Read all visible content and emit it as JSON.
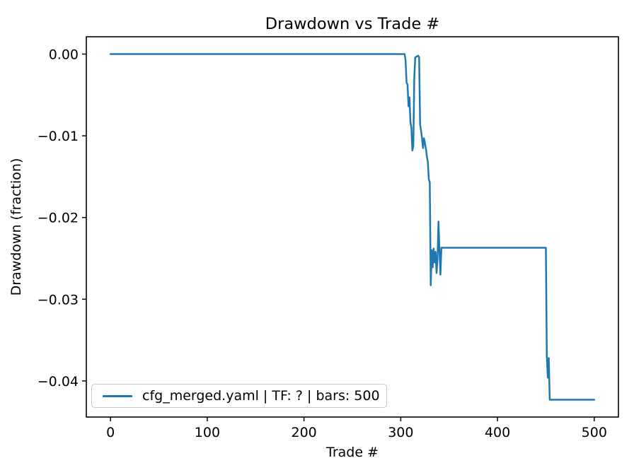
{
  "chart_data": {
    "type": "line",
    "title": "Drawdown vs Trade #",
    "xlabel": "Trade #",
    "ylabel": "Drawdown (fraction)",
    "grid": false,
    "xlim": [
      -25,
      525
    ],
    "ylim": [
      -0.04442,
      0.00212
    ],
    "xticks": {
      "values": [
        0,
        100,
        200,
        300,
        400,
        500
      ],
      "labels": [
        "0",
        "100",
        "200",
        "300",
        "400",
        "500"
      ]
    },
    "yticks": {
      "values": [
        0,
        -0.01,
        -0.02,
        -0.03,
        -0.04
      ],
      "labels": [
        "0.00",
        "−0.01",
        "−0.02",
        "−0.03",
        "−0.04"
      ]
    },
    "legend": {
      "position": "lower left",
      "entries": [
        {
          "label": "cfg_merged.yaml | TF: ? | bars: 500",
          "color": "#1f77b4"
        }
      ]
    },
    "series": [
      {
        "name": "cfg_merged.yaml | TF: ? | bars: 500",
        "color": "#1f77b4",
        "encoding": "polyline-vertices [trade_number, drawdown_fraction]",
        "points": [
          [
            0,
            0.0
          ],
          [
            304,
            0.0
          ],
          [
            305,
            -0.0008
          ],
          [
            306,
            -0.0035
          ],
          [
            307,
            -0.0037
          ],
          [
            308,
            -0.0064
          ],
          [
            309,
            -0.0053
          ],
          [
            310,
            -0.0083
          ],
          [
            311,
            -0.009
          ],
          [
            312,
            -0.0118
          ],
          [
            313,
            -0.0112
          ],
          [
            314,
            -0.0028
          ],
          [
            315,
            -0.0004
          ],
          [
            318,
            -0.0002
          ],
          [
            319,
            -0.0004
          ],
          [
            320,
            -0.0086
          ],
          [
            321,
            -0.0094
          ],
          [
            322,
            -0.0103
          ],
          [
            323,
            -0.0115
          ],
          [
            324,
            -0.0103
          ],
          [
            325,
            -0.0109
          ],
          [
            326,
            -0.0116
          ],
          [
            327,
            -0.0125
          ],
          [
            328,
            -0.0132
          ],
          [
            329,
            -0.0153
          ],
          [
            330,
            -0.0157
          ],
          [
            331,
            -0.0283
          ],
          [
            332,
            -0.024
          ],
          [
            333,
            -0.0261
          ],
          [
            334,
            -0.0238
          ],
          [
            335,
            -0.0255
          ],
          [
            336,
            -0.0242
          ],
          [
            337,
            -0.0268
          ],
          [
            338,
            -0.025
          ],
          [
            339,
            -0.0205
          ],
          [
            340,
            -0.024
          ],
          [
            341,
            -0.027
          ],
          [
            342,
            -0.0237
          ],
          [
            450,
            -0.0237
          ],
          [
            451,
            -0.037
          ],
          [
            452,
            -0.0396
          ],
          [
            453,
            -0.0372
          ],
          [
            454,
            -0.0423
          ],
          [
            500,
            -0.0423
          ]
        ]
      }
    ]
  },
  "colors": {
    "background": "#ffffff",
    "text": "#000000",
    "spine": "#000000",
    "series_blue": "#1f77b4",
    "legend_border": "#c9c9c9"
  }
}
